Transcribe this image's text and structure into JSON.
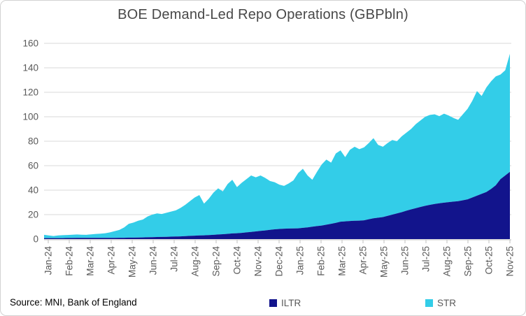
{
  "title": "BOE Demand-Led Repo Operations (GBPbln)",
  "source_note": "Source: MNI, Bank of England",
  "legend": {
    "items": [
      {
        "label": "ILTR",
        "color": "#12148C"
      },
      {
        "label": "STR",
        "color": "#33CDE8"
      }
    ]
  },
  "colors": {
    "iltr": "#12148C",
    "str": "#33CDE8",
    "gridline": "#D9D9D9",
    "axis_line": "#BFBFBF",
    "axis_text": "#595959",
    "title_text": "#484848"
  },
  "chart_data": {
    "type": "area",
    "stacked": true,
    "title": "BOE Demand-Led Repo Operations (GBPbln)",
    "frequency": "weekly",
    "x_tick_labels": [
      "Jan-24",
      "Feb-24",
      "Mar-24",
      "Apr-24",
      "May-24",
      "Jun-24",
      "Jul-24",
      "Aug-24",
      "Sep-24",
      "Oct-24",
      "Nov-24",
      "Dec-24",
      "Jan-25",
      "Feb-25",
      "Mar-25",
      "Apr-25",
      "May-25",
      "Jun-25",
      "Jul-25",
      "Aug-25",
      "Sep-25",
      "Oct-25",
      "Nov-25"
    ],
    "ylim": [
      0,
      160
    ],
    "y_ticks": [
      0,
      20,
      40,
      60,
      80,
      100,
      120,
      140,
      160
    ],
    "grid": "horizontal",
    "legend_position": "bottom",
    "series": [
      {
        "name": "ILTR",
        "color": "#12148C",
        "values": [
          0.8,
          0.8,
          0.8,
          0.8,
          0.8,
          0.9,
          0.9,
          1.0,
          1.0,
          1.0,
          1.0,
          1.0,
          1.0,
          1.0,
          1.0,
          1.0,
          1.1,
          1.1,
          1.2,
          1.2,
          1.3,
          1.4,
          1.5,
          1.6,
          1.7,
          1.8,
          1.9,
          2.0,
          2.1,
          2.2,
          2.4,
          2.6,
          2.8,
          3.0,
          3.1,
          3.3,
          3.5,
          3.8,
          4.0,
          4.3,
          4.6,
          4.8,
          5.1,
          5.5,
          5.9,
          6.3,
          6.7,
          7.1,
          7.6,
          8.0,
          8.3,
          8.5,
          8.6,
          8.7,
          8.8,
          9.2,
          9.6,
          10.1,
          10.6,
          11.1,
          11.8,
          12.5,
          13.3,
          14.2,
          14.5,
          14.8,
          15.0,
          15.1,
          15.4,
          16.2,
          17.0,
          17.5,
          18.0,
          19.0,
          20.0,
          21.0,
          22.0,
          23.2,
          24.3,
          25.3,
          26.3,
          27.2,
          28.0,
          28.7,
          29.3,
          29.8,
          30.2,
          30.6,
          31.0,
          31.7,
          32.5,
          34.0,
          35.5,
          37.0,
          38.5,
          41.0,
          44.0,
          49.0,
          52.0,
          55.0
        ]
      },
      {
        "name": "STR",
        "color": "#33CDE8",
        "values": [
          2.7,
          2.2,
          1.7,
          2.2,
          2.4,
          2.5,
          2.7,
          2.8,
          2.6,
          2.5,
          2.9,
          3.2,
          3.4,
          3.8,
          4.5,
          5.5,
          6.4,
          8.4,
          11.3,
          12.3,
          13.7,
          14.6,
          17.0,
          18.4,
          19.3,
          18.7,
          19.6,
          20.5,
          21.4,
          23.3,
          25.6,
          28.4,
          31.2,
          33.0,
          25.9,
          29.7,
          34.5,
          37.7,
          35.0,
          40.7,
          43.9,
          37.7,
          40.9,
          43.5,
          46.1,
          44.2,
          45.3,
          42.9,
          39.9,
          38.5,
          36.2,
          35.0,
          36.9,
          39.3,
          45.2,
          48.3,
          42.4,
          38.4,
          44.4,
          49.9,
          53.2,
          50.0,
          56.7,
          58.3,
          52.5,
          58.2,
          60.5,
          58.4,
          59.6,
          62.3,
          65.5,
          59.5,
          57.5,
          59.5,
          61.0,
          59.0,
          62.0,
          63.8,
          65.7,
          68.7,
          70.7,
          72.8,
          73.5,
          73.3,
          71.2,
          72.7,
          70.8,
          68.4,
          66.5,
          70.3,
          74.0,
          79.0,
          85.5,
          80.0,
          85.5,
          88.0,
          89.0,
          85.5,
          86.0,
          96.5
        ]
      }
    ]
  }
}
